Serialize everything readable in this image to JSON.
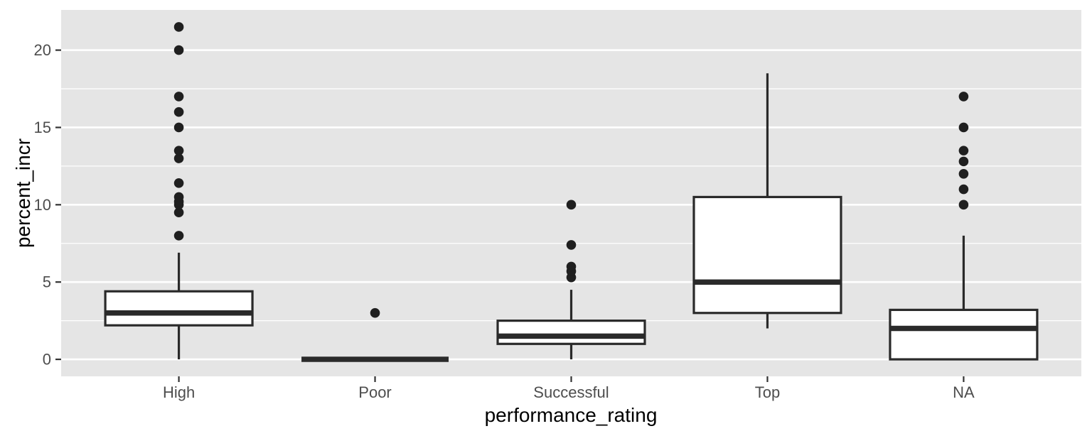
{
  "chart_data": {
    "type": "boxplot",
    "title": "",
    "xlabel": "performance_rating",
    "ylabel": "percent_incr",
    "categories": [
      "High",
      "Poor",
      "Successful",
      "Top",
      "NA"
    ],
    "y_major_ticks": [
      0,
      5,
      10,
      15,
      20
    ],
    "y_minor_ticks": [
      2.5,
      7.5,
      12.5,
      17.5
    ],
    "ylim": [
      -1.1,
      22.6
    ],
    "series": [
      {
        "category": "High",
        "whisker_low": 0,
        "q1": 2.2,
        "median": 3,
        "q3": 4.4,
        "whisker_high": 6.9,
        "outliers": [
          8,
          9.5,
          10,
          10.2,
          10.5,
          11.4,
          13,
          13.5,
          15,
          16,
          17,
          20,
          21.5
        ]
      },
      {
        "category": "Poor",
        "whisker_low": 0,
        "q1": 0,
        "median": 0,
        "q3": 0,
        "whisker_high": 0,
        "outliers": [
          3
        ]
      },
      {
        "category": "Successful",
        "whisker_low": 0,
        "q1": 1,
        "median": 1.5,
        "q3": 2.5,
        "whisker_high": 4.5,
        "outliers": [
          5.3,
          5.7,
          6,
          7.4,
          10
        ]
      },
      {
        "category": "Top",
        "whisker_low": 2,
        "q1": 3,
        "median": 5,
        "q3": 10.5,
        "whisker_high": 18.5,
        "outliers": []
      },
      {
        "category": "NA",
        "whisker_low": 0,
        "q1": 0,
        "median": 2,
        "q3": 3.2,
        "whisker_high": 8,
        "outliers": [
          10,
          11,
          12,
          12.8,
          13.5,
          15,
          17
        ]
      }
    ],
    "layout": {
      "legend": "none",
      "grid": "major-and-minor",
      "theme": "gray-panel"
    },
    "colors": {
      "panel_bg": "#E5E5E5",
      "grid": "#FFFFFF",
      "box_stroke": "#2A2A2A",
      "box_fill": "#FFFFFF",
      "outlier": "#1F1F1F",
      "tick_mark": "#333333",
      "tick_label": "#4D4D4D",
      "axis_title": "#000000"
    }
  }
}
